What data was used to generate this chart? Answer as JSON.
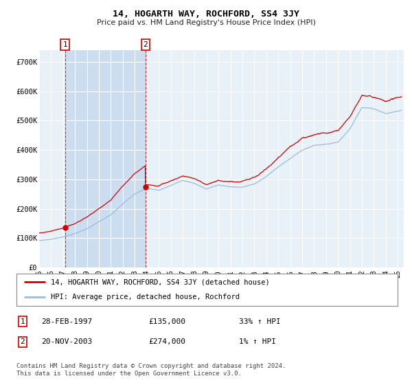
{
  "title": "14, HOGARTH WAY, ROCHFORD, SS4 3JY",
  "subtitle": "Price paid vs. HM Land Registry's House Price Index (HPI)",
  "ylabel_ticks": [
    "£0",
    "£100K",
    "£200K",
    "£300K",
    "£400K",
    "£500K",
    "£600K",
    "£700K"
  ],
  "ytick_values": [
    0,
    100000,
    200000,
    300000,
    400000,
    500000,
    600000,
    700000
  ],
  "ylim": [
    0,
    740000
  ],
  "xlim_start": 1995.0,
  "xlim_end": 2025.5,
  "sale1_x": 1997.16,
  "sale1_y": 135000,
  "sale2_x": 2003.89,
  "sale2_y": 274000,
  "sale1_label": "1",
  "sale2_label": "2",
  "legend_line1": "14, HOGARTH WAY, ROCHFORD, SS4 3JY (detached house)",
  "legend_line2": "HPI: Average price, detached house, Rochford",
  "table_row1": [
    "1",
    "28-FEB-1997",
    "£135,000",
    "33% ↑ HPI"
  ],
  "table_row2": [
    "2",
    "20-NOV-2003",
    "£274,000",
    "1% ↑ HPI"
  ],
  "footer": "Contains HM Land Registry data © Crown copyright and database right 2024.\nThis data is licensed under the Open Government Licence v3.0.",
  "line_color_red": "#cc0000",
  "line_color_blue": "#99bbdd",
  "shade_color": "#ccddf0",
  "plot_bg": "#e8f0f8",
  "grid_color": "#ffffff",
  "xtick_labels": [
    "95",
    "96",
    "97",
    "98",
    "99",
    "00",
    "01",
    "02",
    "03",
    "04",
    "05",
    "06",
    "07",
    "08",
    "09",
    "10",
    "11",
    "12",
    "13",
    "14",
    "15",
    "16",
    "17",
    "18",
    "19",
    "20",
    "21",
    "22",
    "23",
    "24",
    "25"
  ],
  "xtick_years": [
    1995,
    1996,
    1997,
    1998,
    1999,
    2000,
    2001,
    2002,
    2003,
    2004,
    2005,
    2006,
    2007,
    2008,
    2009,
    2010,
    2011,
    2012,
    2013,
    2014,
    2015,
    2016,
    2017,
    2018,
    2019,
    2020,
    2021,
    2022,
    2023,
    2024,
    2025
  ]
}
